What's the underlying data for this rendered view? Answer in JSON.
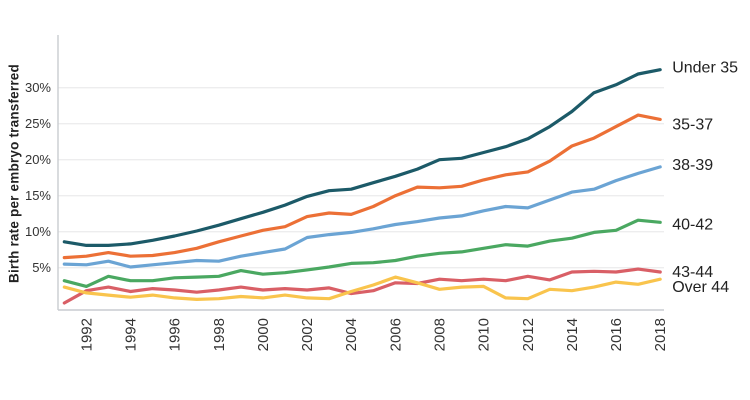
{
  "chart_data": {
    "type": "line",
    "title": "",
    "ylabel": "Birth rate per embryo transferred",
    "xlabel": "",
    "grid": "horizontal",
    "legend_position": "right-of-line-ends",
    "ylim": [
      0,
      37
    ],
    "x": [
      1991,
      1992,
      1993,
      1994,
      1995,
      1996,
      1997,
      1998,
      1999,
      2000,
      2001,
      2002,
      2003,
      2004,
      2005,
      2006,
      2007,
      2008,
      2009,
      2010,
      2011,
      2012,
      2013,
      2014,
      2015,
      2016,
      2017,
      2018
    ],
    "x_tick_labels": [
      "1992",
      "1994",
      "1996",
      "1998",
      "2000",
      "2002",
      "2004",
      "2006",
      "2008",
      "2010",
      "2012",
      "2014",
      "2016",
      "2018"
    ],
    "y_ticks": [
      {
        "value": 5,
        "label": "5%"
      },
      {
        "value": 10,
        "label": "10%"
      },
      {
        "value": 15,
        "label": "15%"
      },
      {
        "value": 20,
        "label": "20%"
      },
      {
        "value": 25,
        "label": "25%"
      },
      {
        "value": 30,
        "label": "30%"
      }
    ],
    "series": [
      {
        "name": "Under 35",
        "color": "#1c5a68",
        "values": [
          8.6,
          8.1,
          8.1,
          8.3,
          8.8,
          9.4,
          10.1,
          10.9,
          11.8,
          12.7,
          13.7,
          14.9,
          15.7,
          15.9,
          16.8,
          17.7,
          18.7,
          20.0,
          20.2,
          21.0,
          21.8,
          22.9,
          24.6,
          26.7,
          29.3,
          30.4,
          31.9,
          32.5
        ]
      },
      {
        "name": "35-37",
        "color": "#ec7036",
        "values": [
          6.4,
          6.6,
          7.1,
          6.6,
          6.7,
          7.1,
          7.7,
          8.6,
          9.4,
          10.2,
          10.7,
          12.1,
          12.6,
          12.4,
          13.5,
          15.0,
          16.2,
          16.1,
          16.3,
          17.2,
          17.9,
          18.3,
          19.8,
          21.9,
          23.0,
          24.6,
          26.2,
          25.6
        ]
      },
      {
        "name": "38-39",
        "color": "#6ba4d4",
        "values": [
          5.5,
          5.4,
          5.9,
          5.1,
          5.4,
          5.7,
          6.0,
          5.9,
          6.6,
          7.1,
          7.6,
          9.2,
          9.6,
          9.9,
          10.4,
          11.0,
          11.4,
          11.9,
          12.2,
          12.9,
          13.5,
          13.3,
          14.4,
          15.5,
          15.9,
          17.1,
          18.1,
          19.0
        ]
      },
      {
        "name": "40-42",
        "color": "#4aa861",
        "values": [
          3.2,
          2.4,
          3.8,
          3.2,
          3.2,
          3.6,
          3.7,
          3.8,
          4.6,
          4.1,
          4.3,
          4.7,
          5.1,
          5.6,
          5.7,
          6.0,
          6.6,
          7.0,
          7.2,
          7.7,
          8.2,
          8.0,
          8.7,
          9.1,
          9.9,
          10.2,
          11.6,
          11.3
        ]
      },
      {
        "name": "43-44",
        "color": "#d95f66",
        "values": [
          0.1,
          1.8,
          2.3,
          1.7,
          2.1,
          1.9,
          1.6,
          1.9,
          2.3,
          1.9,
          2.1,
          1.9,
          2.2,
          1.4,
          1.8,
          2.9,
          2.8,
          3.4,
          3.2,
          3.4,
          3.2,
          3.8,
          3.3,
          4.4,
          4.5,
          4.4,
          4.8,
          4.4
        ]
      },
      {
        "name": "Over 44",
        "color": "#f9c44d",
        "values": [
          2.3,
          1.5,
          1.2,
          0.9,
          1.2,
          0.8,
          0.6,
          0.7,
          1.0,
          0.8,
          1.2,
          0.8,
          0.7,
          1.7,
          2.6,
          3.7,
          2.9,
          2.0,
          2.3,
          2.4,
          0.8,
          0.7,
          2.0,
          1.8,
          2.3,
          3.0,
          2.7,
          3.4
        ]
      }
    ]
  },
  "colors": {
    "background": "#ffffff",
    "gridline": "#ededee",
    "axis": "#c9ccd0",
    "tick_text": "#333333",
    "series_label_text": "#222222"
  }
}
